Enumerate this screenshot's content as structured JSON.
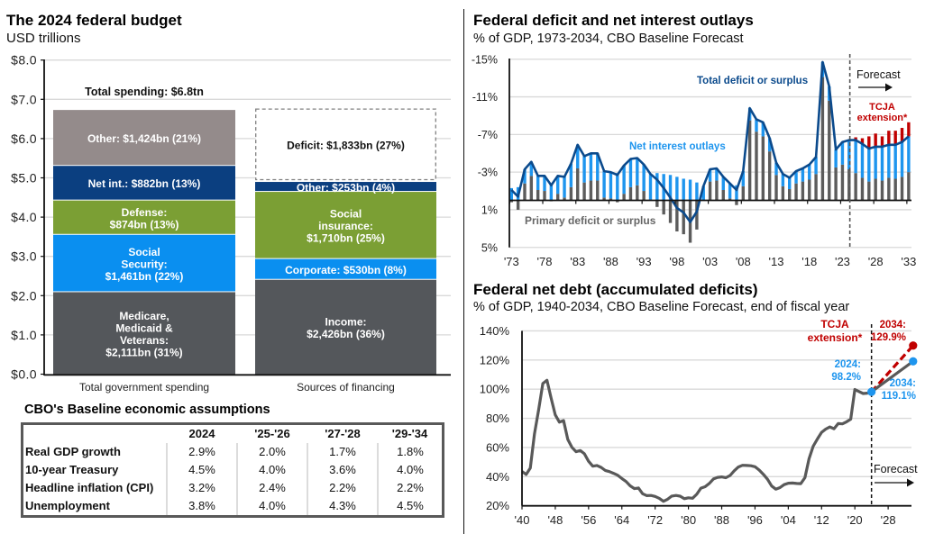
{
  "panels": {
    "budget": {
      "title": "The 2024 federal budget",
      "subtitle": "USD trillions"
    },
    "deficit": {
      "title": "Federal deficit and net interest outlays",
      "subtitle": "% of GDP, 1973-2034, CBO Baseline Forecast"
    },
    "debt": {
      "title": "Federal net debt (accumulated deficits)",
      "subtitle": "% of GDP, 1940-2034, CBO Baseline Forecast, end of fiscal year"
    }
  },
  "table": {
    "title": "CBO's Baseline economic assumptions",
    "columns": [
      "",
      "2024",
      "'25-'26",
      "'27-'28",
      "'29-'34"
    ],
    "rows": [
      {
        "label": "Real GDP growth",
        "values": [
          "2.9%",
          "2.0%",
          "1.7%",
          "1.8%"
        ]
      },
      {
        "label": "10-year Treasury",
        "values": [
          "4.5%",
          "4.0%",
          "3.6%",
          "4.0%"
        ]
      },
      {
        "label": "Headline inflation (CPI)",
        "values": [
          "3.2%",
          "2.4%",
          "2.2%",
          "2.2%"
        ]
      },
      {
        "label": "Unemployment",
        "values": [
          "3.8%",
          "4.0%",
          "4.3%",
          "4.5%"
        ]
      }
    ]
  },
  "chart_data": [
    {
      "type": "bar",
      "stacked": true,
      "title": "The 2024 federal budget",
      "ylabel": "USD trillions",
      "ylim": [
        0,
        8
      ],
      "grid": true,
      "y_ticks": [
        0,
        1,
        2,
        3,
        4,
        5,
        6,
        7,
        8
      ],
      "y_tick_labels": [
        "$0.0",
        "$1.0",
        "$2.0",
        "$3.0",
        "$4.0",
        "$5.0",
        "$6.0",
        "$7.0",
        "$8.0"
      ],
      "categories": [
        "Total government spending",
        "Sources of financing"
      ],
      "stacks": [
        {
          "category": "Total government spending",
          "annotation": "Total spending: $6.8tn",
          "segments": [
            {
              "name": "Medicare, Medicaid & Veterans",
              "value": 2.111,
              "share_pct": 31,
              "color": "#54575b",
              "label": [
                "Medicare,",
                "Medicaid &",
                "Veterans:",
                "$2,111bn (31%)"
              ]
            },
            {
              "name": "Social Security",
              "value": 1.461,
              "share_pct": 22,
              "color": "#0a8ff0",
              "label": [
                "Social",
                "Security:",
                "$1,461bn (22%)"
              ]
            },
            {
              "name": "Defense",
              "value": 0.874,
              "share_pct": 13,
              "color": "#7b9f34",
              "label": [
                "Defense:",
                "$874bn (13%)"
              ]
            },
            {
              "name": "Net interest",
              "value": 0.882,
              "share_pct": 13,
              "color": "#0b3f80",
              "label": [
                "Net int.: $882bn (13%)"
              ]
            },
            {
              "name": "Other",
              "value": 1.424,
              "share_pct": 21,
              "color": "#948b8b",
              "label": [
                "Other: $1,424bn (21%)"
              ]
            }
          ]
        },
        {
          "category": "Sources of financing",
          "segments": [
            {
              "name": "Income",
              "value": 2.426,
              "share_pct": 36,
              "color": "#54575b",
              "label": [
                "Income:",
                "$2,426bn (36%)"
              ]
            },
            {
              "name": "Corporate",
              "value": 0.53,
              "share_pct": 8,
              "color": "#0a8ff0",
              "label": [
                "Corporate: $530bn (8%)"
              ]
            },
            {
              "name": "Social insurance",
              "value": 1.71,
              "share_pct": 25,
              "color": "#7b9f34",
              "label": [
                "Social",
                "insurance:",
                "$1,710bn (25%)"
              ]
            },
            {
              "name": "Other",
              "value": 0.253,
              "share_pct": 4,
              "color": "#0b3f80",
              "label": [
                "Other: $253bn (4%)"
              ]
            },
            {
              "name": "Deficit",
              "value": 1.833,
              "share_pct": 27,
              "color": "#ffffff",
              "style": "dashed",
              "label": [
                "Deficit: $1,833bn (27%)"
              ]
            }
          ]
        }
      ]
    },
    {
      "type": "bar",
      "subtype": "stacked bars with line overlay",
      "title": "Federal deficit and net interest outlays",
      "subtitle": "% of GDP, 1973-2034, CBO Baseline Forecast",
      "ylabel": "% of GDP",
      "ylim": [
        5,
        -15
      ],
      "y_axis_inverted": true,
      "grid": true,
      "y_ticks": [
        -15,
        -11,
        -7,
        -3,
        1,
        5
      ],
      "y_tick_labels": [
        "-15%",
        "-11%",
        "-7%",
        "-3%",
        "1%",
        "5%"
      ],
      "start_year": 1973,
      "end_year": 2033,
      "x_tick_labels": [
        "'73",
        "'78",
        "'83",
        "'88",
        "'93",
        "'98",
        "'03",
        "'08",
        "'13",
        "'18",
        "'23",
        "'28",
        "'33"
      ],
      "forecast_start_year": 2025,
      "forecast_label": "Forecast",
      "series": {
        "total": {
          "name": "Total deficit or surplus",
          "type": "line",
          "color": "#0b4a8c",
          "values": [
            -1.1,
            -0.4,
            -3.3,
            -4.1,
            -2.6,
            -2.6,
            -1.6,
            -2.6,
            -2.5,
            -3.9,
            -5.9,
            -4.7,
            -5.0,
            -5.0,
            -3.1,
            -3.0,
            -2.7,
            -3.7,
            -4.4,
            -4.5,
            -3.8,
            -2.8,
            -2.2,
            -1.3,
            -0.3,
            0.8,
            1.3,
            2.3,
            1.2,
            -1.5,
            -3.3,
            -3.4,
            -2.5,
            -1.8,
            -1.1,
            -3.1,
            -9.8,
            -8.6,
            -8.3,
            -6.6,
            -4.0,
            -2.8,
            -2.4,
            -3.1,
            -3.4,
            -3.8,
            -4.6,
            -14.7,
            -12.1,
            -5.4,
            -6.2,
            -6.4,
            -6.4,
            -6.0,
            -5.5,
            -5.7,
            -5.7,
            -5.9,
            -5.9,
            -6.2,
            -6.8
          ]
        },
        "net_interest": {
          "name": "Net interest outlays",
          "type": "bar",
          "color": "#1e95ee",
          "values": [
            1.3,
            1.4,
            1.5,
            1.5,
            1.5,
            1.6,
            1.7,
            1.9,
            2.2,
            2.5,
            2.5,
            2.8,
            2.9,
            2.9,
            2.8,
            2.8,
            2.9,
            3.0,
            3.0,
            2.9,
            2.8,
            2.7,
            2.9,
            2.8,
            2.7,
            2.5,
            2.3,
            2.2,
            1.9,
            1.5,
            1.3,
            1.3,
            1.4,
            1.6,
            1.6,
            1.6,
            1.3,
            1.3,
            1.5,
            1.4,
            1.3,
            1.3,
            1.2,
            1.3,
            1.4,
            1.6,
            1.8,
            1.6,
            1.5,
            1.9,
            2.4,
            3.1,
            3.5,
            3.6,
            3.5,
            3.4,
            3.6,
            3.5,
            3.6,
            3.7,
            3.8
          ]
        },
        "primary": {
          "name": "Primary deficit or surplus",
          "type": "bar",
          "color": "#5c5c5c",
          "values": [
            0.2,
            1.0,
            -1.8,
            -2.6,
            -1.1,
            -1.0,
            0.1,
            -0.7,
            -0.3,
            -1.4,
            -3.4,
            -1.9,
            -2.1,
            -2.1,
            -0.3,
            -0.2,
            0.2,
            -0.7,
            -1.4,
            -1.6,
            -1.0,
            -0.1,
            0.7,
            1.5,
            2.4,
            3.3,
            3.6,
            4.5,
            3.1,
            0.0,
            -2.0,
            -2.1,
            -1.1,
            -0.2,
            0.5,
            -1.5,
            -8.5,
            -7.3,
            -6.8,
            -5.2,
            -2.7,
            -1.5,
            -1.2,
            -1.8,
            -2.0,
            -2.2,
            -2.8,
            -13.1,
            -10.6,
            -3.5,
            -3.8,
            -3.3,
            -2.9,
            -2.4,
            -2.0,
            -2.3,
            -2.1,
            -2.4,
            -2.3,
            -2.5,
            -3.0
          ]
        },
        "tcja": {
          "name": "TCJA extension*",
          "label_lines": [
            "TCJA",
            "extension*"
          ],
          "type": "bar",
          "color": "#c00000",
          "years": [
            2025,
            2026,
            2027,
            2028,
            2029,
            2030,
            2031,
            2032,
            2033
          ],
          "total_with_extension": [
            -6.7,
            -6.6,
            -6.8,
            -7.1,
            -6.8,
            -7.4,
            -7.4,
            -7.7,
            -8.3
          ]
        }
      }
    },
    {
      "type": "line",
      "title": "Federal net debt (accumulated deficits)",
      "subtitle": "% of GDP, 1940-2034, CBO Baseline Forecast, end of fiscal year",
      "ylabel": "% of GDP",
      "ylim": [
        20,
        140
      ],
      "grid": true,
      "y_ticks": [
        20,
        40,
        60,
        80,
        100,
        120,
        140
      ],
      "y_tick_labels": [
        "20%",
        "40%",
        "60%",
        "80%",
        "100%",
        "120%",
        "140%"
      ],
      "x_tick_years": [
        1940,
        1948,
        1956,
        1964,
        1972,
        1980,
        1988,
        1996,
        2004,
        2012,
        2020,
        2028
      ],
      "x_tick_labels": [
        "'40",
        "'48",
        "'56",
        "'64",
        "'72",
        "'80",
        "'88",
        "'96",
        "'04",
        "'12",
        "'20",
        "'28"
      ],
      "forecast_start_year": 2024,
      "forecast_label": "Forecast",
      "series": {
        "history": {
          "name": "Federal net debt",
          "color": "#595959",
          "start_year": 1940,
          "values": [
            43.6,
            41.5,
            45.9,
            69.2,
            86.0,
            103.9,
            106.1,
            93.9,
            82.4,
            77.4,
            78.5,
            65.5,
            60.1,
            57.1,
            57.9,
            55.7,
            50.6,
            47.2,
            47.7,
            46.4,
            44.3,
            43.5,
            42.3,
            41.0,
            38.7,
            36.7,
            33.7,
            31.8,
            32.2,
            28.3,
            27.0,
            27.1,
            26.4,
            25.1,
            23.1,
            24.5,
            26.7,
            27.1,
            26.6,
            24.9,
            25.5,
            25.2,
            27.9,
            32.1,
            33.1,
            35.3,
            38.4,
            39.5,
            39.8,
            39.3,
            40.8,
            44.0,
            46.6,
            47.8,
            47.7,
            47.5,
            46.8,
            44.5,
            41.6,
            38.2,
            33.6,
            31.4,
            32.5,
            34.5,
            35.5,
            35.6,
            35.3,
            35.2,
            39.3,
            52.3,
            60.9,
            65.9,
            70.4,
            72.6,
            74.1,
            72.9,
            76.4,
            76.2,
            77.6,
            79.4,
            99.8,
            98.4,
            97.0,
            97.3,
            98.2
          ]
        },
        "baseline": {
          "name": "CBO Baseline Forecast",
          "line_color": "#595959",
          "marker_color": "#1e95ee",
          "points": [
            [
              2024,
              98.2
            ],
            [
              2034,
              119.1
            ]
          ],
          "start_label": [
            "2024:",
            "98.2%"
          ],
          "end_label": [
            "2034:",
            "119.1%"
          ]
        },
        "tcja": {
          "name": "TCJA extension*",
          "label_lines": [
            "TCJA",
            "extension*"
          ],
          "color": "#c00000",
          "style": "dashed",
          "points": [
            [
              2024,
              98.2
            ],
            [
              2034,
              129.9
            ]
          ],
          "end_label": [
            "2034:",
            "129.9%"
          ]
        }
      }
    }
  ]
}
